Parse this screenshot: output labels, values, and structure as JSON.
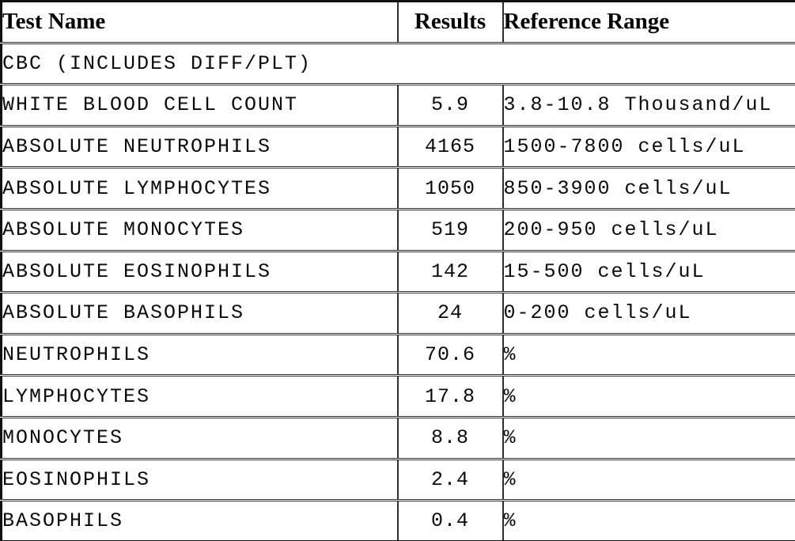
{
  "table": {
    "columns": {
      "test_name": "Test Name",
      "results": "Results",
      "reference_range": "Reference Range"
    },
    "group_row": {
      "label": "CBC (INCLUDES DIFF/PLT)"
    },
    "rows": [
      {
        "test_name": "WHITE BLOOD CELL COUNT",
        "result": "5.9",
        "reference_range": "3.8-10.8 Thousand/uL"
      },
      {
        "test_name": "ABSOLUTE NEUTROPHILS",
        "result": "4165",
        "reference_range": "1500-7800 cells/uL"
      },
      {
        "test_name": "ABSOLUTE LYMPHOCYTES",
        "result": "1050",
        "reference_range": "850-3900 cells/uL"
      },
      {
        "test_name": "ABSOLUTE MONOCYTES",
        "result": "519",
        "reference_range": "200-950 cells/uL"
      },
      {
        "test_name": "ABSOLUTE EOSINOPHILS",
        "result": "142",
        "reference_range": "15-500 cells/uL"
      },
      {
        "test_name": "ABSOLUTE BASOPHILS",
        "result": "24",
        "reference_range": "0-200 cells/uL"
      },
      {
        "test_name": "NEUTROPHILS",
        "result": "70.6",
        "reference_range": "%"
      },
      {
        "test_name": "LYMPHOCYTES",
        "result": "17.8",
        "reference_range": "%"
      },
      {
        "test_name": "MONOCYTES",
        "result": "8.8",
        "reference_range": "%"
      },
      {
        "test_name": "EOSINOPHILS",
        "result": "2.4",
        "reference_range": "%"
      },
      {
        "test_name": "BASOPHILS",
        "result": "0.4",
        "reference_range": "%"
      }
    ],
    "colors": {
      "text": "#000000",
      "border": "#2e2e2e",
      "outer_border": "#111111",
      "background": "#ffffff"
    }
  }
}
